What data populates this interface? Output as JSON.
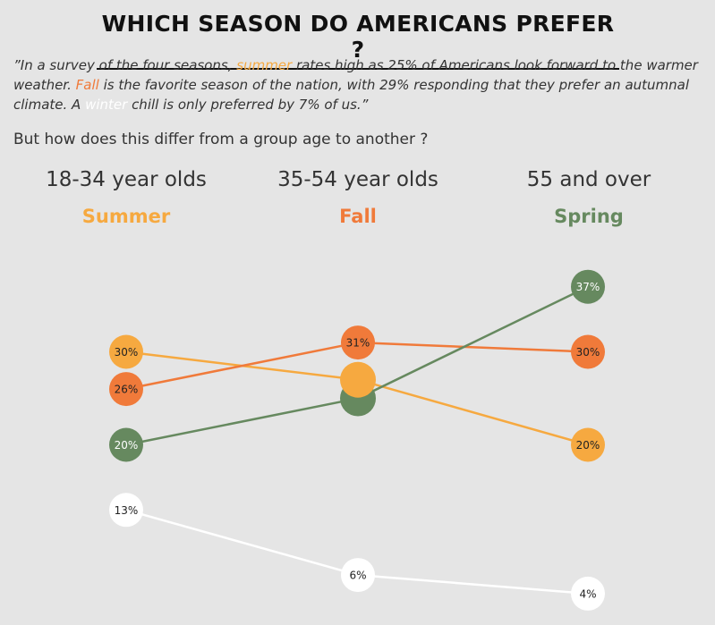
{
  "title": "WHICH SEASON DO AMERICANS PREFER ?",
  "quote": {
    "p1": "”In a survey of the four seasons, ",
    "summer": "summer",
    "p2": " rates high as 25% of Americans look forward to the warmer weather. ",
    "fall": "Fall",
    "p3": " is the favorite season of the nation, with 29% responding that they prefer an autumnal climate. A ",
    "winter": "winter",
    "p4": " chill is only preferred by 7% of us.”"
  },
  "question": "But how  does this differ  from a group age to another ?",
  "groups": [
    {
      "label": "18-34 year olds",
      "favorite": "Summer",
      "favorite_color": "#f6a940"
    },
    {
      "label": "35-54 year olds",
      "favorite": "Fall",
      "favorite_color": "#f07a3a"
    },
    {
      "label": "55 and over",
      "favorite": "Spring",
      "favorite_color": "#66895f"
    }
  ],
  "chart_data": {
    "type": "line",
    "x": [
      "18-34 year olds",
      "35-54 year olds",
      "55 and over"
    ],
    "ylim": [
      0,
      40
    ],
    "grid": false,
    "series": [
      {
        "name": "Summer",
        "color": "#f6a940",
        "values": [
          30,
          27,
          20
        ],
        "labels": [
          "30%",
          "",
          "20%"
        ],
        "text_color": "#222222"
      },
      {
        "name": "Fall",
        "color": "#f07a3a",
        "values": [
          26,
          31,
          30
        ],
        "labels": [
          "26%",
          "31%",
          "30%"
        ],
        "text_color": "#222222"
      },
      {
        "name": "Spring",
        "color": "#66895f",
        "values": [
          20,
          25,
          37
        ],
        "labels": [
          "20%",
          "",
          "37%"
        ],
        "text_color": "#ffffff"
      },
      {
        "name": "Winter",
        "color": "#ffffff",
        "values": [
          13,
          6,
          4
        ],
        "labels": [
          "13%",
          "6%",
          "4%"
        ],
        "text_color": "#222222"
      }
    ]
  }
}
